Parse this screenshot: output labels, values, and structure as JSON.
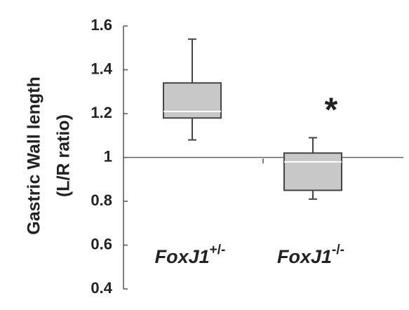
{
  "chart_data": {
    "type": "box",
    "y_label": [
      "Gastric Wall length",
      "(L/R ratio)"
    ],
    "categories": [
      {
        "text": "FoxJ1",
        "sup": "+/-"
      },
      {
        "text": "FoxJ1",
        "sup": "-/-"
      }
    ],
    "boxes": [
      {
        "min": 1.08,
        "q1": 1.18,
        "median": 1.21,
        "q3": 1.34,
        "max": 1.54
      },
      {
        "min": 0.81,
        "q1": 0.85,
        "median": 0.98,
        "q3": 1.02,
        "max": 1.09
      }
    ],
    "annotation": "*",
    "reference_line": 1,
    "color": "#c8c8c8",
    "ylim": [
      0.4,
      1.6
    ],
    "yticks": [
      0.4,
      0.6,
      0.8,
      1,
      1.2,
      1.4,
      1.6
    ]
  }
}
